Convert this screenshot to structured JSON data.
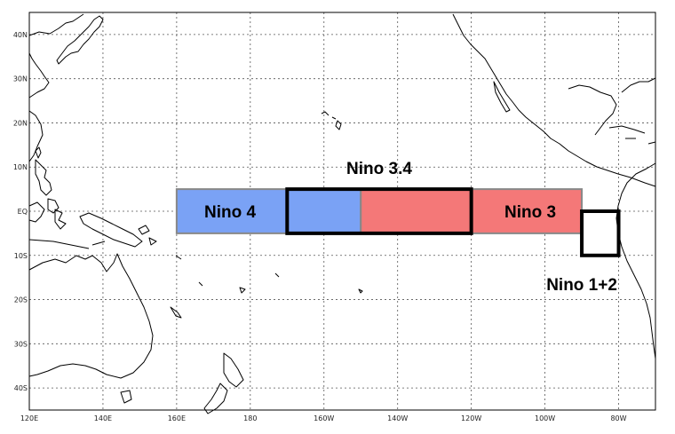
{
  "map": {
    "projection": "equirectangular",
    "lon_range": [
      120,
      290
    ],
    "lat_range": [
      -45,
      45
    ],
    "gridlines": "dotted",
    "lat_ticks": [
      {
        "value": 40,
        "label": "40N"
      },
      {
        "value": 30,
        "label": "30N"
      },
      {
        "value": 20,
        "label": "20N"
      },
      {
        "value": 10,
        "label": "10N"
      },
      {
        "value": 0,
        "label": "EQ"
      },
      {
        "value": -10,
        "label": "10S"
      },
      {
        "value": -20,
        "label": "20S"
      },
      {
        "value": -30,
        "label": "30S"
      },
      {
        "value": -40,
        "label": "40S"
      }
    ],
    "lon_ticks": [
      {
        "value": 120,
        "label": "120E"
      },
      {
        "value": 140,
        "label": "140E"
      },
      {
        "value": 160,
        "label": "160E"
      },
      {
        "value": 180,
        "label": "180"
      },
      {
        "value": 200,
        "label": "160W"
      },
      {
        "value": 220,
        "label": "140W"
      },
      {
        "value": 240,
        "label": "120W"
      },
      {
        "value": 260,
        "label": "100W"
      },
      {
        "value": 280,
        "label": "80W"
      }
    ]
  },
  "regions": [
    {
      "id": "nino4-west",
      "label": "",
      "lon": [
        160,
        190
      ],
      "lat": [
        -5,
        5
      ],
      "fill": "#7aa2f5",
      "outline": "#888888",
      "bold_outline": false
    },
    {
      "id": "nino4-overlap",
      "label": "",
      "lon": [
        190,
        210
      ],
      "lat": [
        -5,
        5
      ],
      "fill": "#7aa2f5",
      "outline": "#888888",
      "bold_outline": false
    },
    {
      "id": "nino3-overlap",
      "label": "",
      "lon": [
        210,
        240
      ],
      "lat": [
        -5,
        5
      ],
      "fill": "#f47878",
      "outline": "#888888",
      "bold_outline": false
    },
    {
      "id": "nino3-east",
      "label": "",
      "lon": [
        240,
        270
      ],
      "lat": [
        -5,
        5
      ],
      "fill": "#f47878",
      "outline": "#888888",
      "bold_outline": false
    },
    {
      "id": "nino34",
      "label": "",
      "lon": [
        190,
        240
      ],
      "lat": [
        -5,
        5
      ],
      "fill": "none",
      "outline": "#000000",
      "bold_outline": true
    },
    {
      "id": "nino12",
      "label": "",
      "lon": [
        270,
        280
      ],
      "lat": [
        -10,
        0
      ],
      "fill": "none",
      "outline": "#000000",
      "bold_outline": true
    }
  ],
  "labels": [
    {
      "name": "nino4-label",
      "text": "Nino 4",
      "lon": 174.5,
      "lat": 0
    },
    {
      "name": "nino34-label",
      "text": "Nino 3.4",
      "lon": 215,
      "lat": 9.8
    },
    {
      "name": "nino3-label",
      "text": "Nino 3",
      "lon": 256,
      "lat": 0
    },
    {
      "name": "nino12-label",
      "text": "Nino 1+2",
      "lon": 270,
      "lat": -16.5
    }
  ]
}
